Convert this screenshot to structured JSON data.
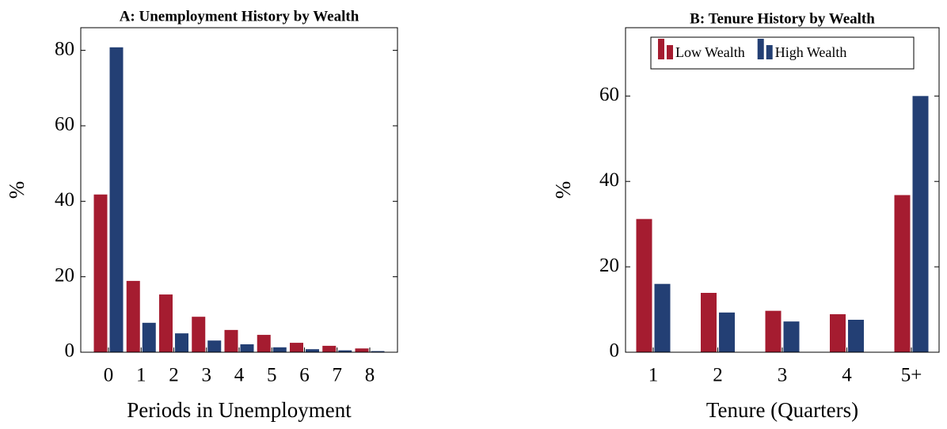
{
  "chart_data": [
    {
      "type": "bar",
      "title": "A: Unemployment History by Wealth",
      "x_label": "Periods in Unemployment",
      "y_label": "%",
      "categories": [
        "0",
        "1",
        "2",
        "3",
        "4",
        "5",
        "6",
        "7",
        "8"
      ],
      "series": [
        {
          "color": "#a51c30",
          "values": [
            41.8,
            18.9,
            15.3,
            9.4,
            5.9,
            4.6,
            2.5,
            1.7,
            1.0
          ]
        },
        {
          "color": "#233f74",
          "values": [
            80.8,
            7.8,
            5.0,
            3.1,
            2.1,
            1.3,
            0.8,
            0.5,
            0.3
          ]
        }
      ],
      "ylim": [
        0,
        86
      ],
      "yticks": [
        0,
        20,
        40,
        60,
        80
      ]
    },
    {
      "type": "bar",
      "title": "B: Tenure History by Wealth",
      "x_label": "Tenure (Quarters)",
      "y_label": "%",
      "categories": [
        "1",
        "2",
        "3",
        "4",
        "5+"
      ],
      "series": [
        {
          "name": "Low Wealth",
          "color": "#a51c30",
          "values": [
            31.2,
            13.9,
            9.7,
            8.9,
            36.8
          ]
        },
        {
          "name": "High Wealth",
          "color": "#233f74",
          "values": [
            16.0,
            9.3,
            7.2,
            7.6,
            60.0
          ]
        }
      ],
      "ylim": [
        0,
        76
      ],
      "yticks": [
        0,
        20,
        40,
        60
      ],
      "legend": "upper center"
    }
  ]
}
